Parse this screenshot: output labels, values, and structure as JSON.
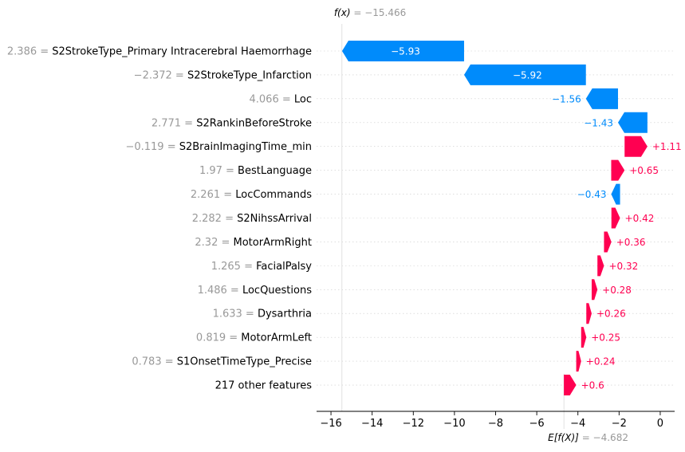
{
  "chart_data": {
    "type": "waterfall",
    "fx_label": "f(x)",
    "fx_value": "= −15.466",
    "ex_label": "E[f(X)]",
    "ex_value": "= −4.682",
    "base_value": -4.682,
    "final_value": -15.466,
    "xlim": [
      -16.7,
      0.7
    ],
    "x_ticks": [
      -16,
      -14,
      -12,
      -10,
      -8,
      -6,
      -4,
      -2,
      0
    ],
    "x_tick_labels": [
      "−16",
      "−14",
      "−12",
      "−10",
      "−8",
      "−6",
      "−4",
      "−2",
      "0"
    ],
    "colors": {
      "negative": "#008bfb",
      "positive": "#ff0051",
      "feature_value": "#999999",
      "feature_name": "#000000"
    },
    "features": [
      {
        "value_text": "2.386 =",
        "name": "S2StrokeType_Primary Intracerebral Haemorrhage",
        "shap": -5.93,
        "label": "−5.93"
      },
      {
        "value_text": "−2.372 =",
        "name": "S2StrokeType_Infarction",
        "shap": -5.92,
        "label": "−5.92"
      },
      {
        "value_text": "4.066 =",
        "name": "Loc",
        "shap": -1.56,
        "label": "−1.56"
      },
      {
        "value_text": "2.771 =",
        "name": "S2RankinBeforeStroke",
        "shap": -1.43,
        "label": "−1.43"
      },
      {
        "value_text": "−0.119 =",
        "name": "S2BrainImagingTime_min",
        "shap": 1.11,
        "label": "+1.11"
      },
      {
        "value_text": "1.97 =",
        "name": "BestLanguage",
        "shap": 0.65,
        "label": "+0.65"
      },
      {
        "value_text": "2.261 =",
        "name": "LocCommands",
        "shap": -0.43,
        "label": "−0.43"
      },
      {
        "value_text": "2.282 =",
        "name": "S2NihssArrival",
        "shap": 0.42,
        "label": "+0.42"
      },
      {
        "value_text": "2.32 =",
        "name": "MotorArmRight",
        "shap": 0.36,
        "label": "+0.36"
      },
      {
        "value_text": "1.265 =",
        "name": "FacialPalsy",
        "shap": 0.32,
        "label": "+0.32"
      },
      {
        "value_text": "1.486 =",
        "name": "LocQuestions",
        "shap": 0.28,
        "label": "+0.28"
      },
      {
        "value_text": "1.633 =",
        "name": "Dysarthria",
        "shap": 0.26,
        "label": "+0.26"
      },
      {
        "value_text": "0.819 =",
        "name": "MotorArmLeft",
        "shap": 0.25,
        "label": "+0.25"
      },
      {
        "value_text": "0.783 =",
        "name": "S1OnsetTimeType_Precise",
        "shap": 0.24,
        "label": "+0.24"
      },
      {
        "value_text": "",
        "name": "217 other features",
        "shap": 0.6,
        "label": "+0.6"
      }
    ]
  }
}
